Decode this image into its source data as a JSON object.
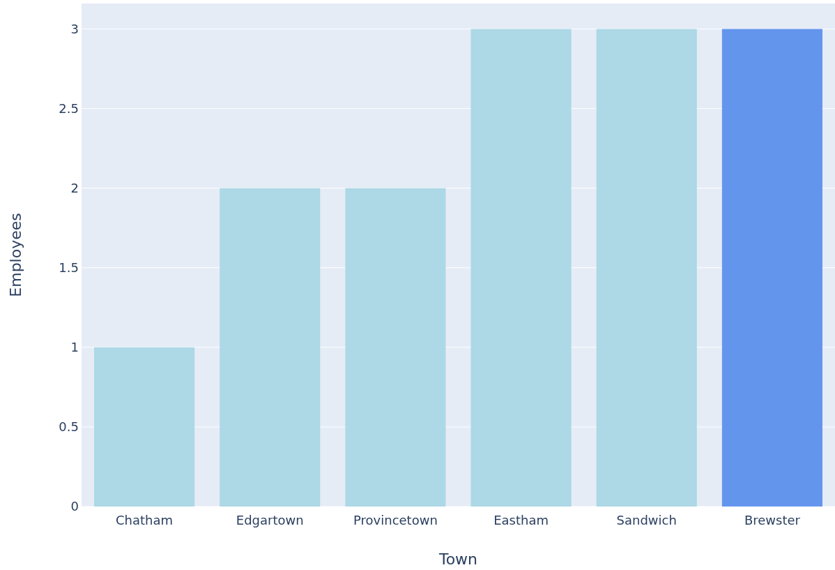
{
  "chart_data": {
    "type": "bar",
    "xlabel": "Town",
    "ylabel": "Employees",
    "categories": [
      "Chatham",
      "Edgartown",
      "Provincetown",
      "Eastham",
      "Sandwich",
      "Brewster"
    ],
    "values": [
      1,
      2,
      2,
      3,
      3,
      3
    ],
    "colors": [
      "#add8e6",
      "#add8e6",
      "#add8e6",
      "#add8e6",
      "#add8e6",
      "#6495ed"
    ],
    "ylim": [
      0,
      3.16
    ],
    "yticks": [
      0,
      0.5,
      1,
      1.5,
      2,
      2.5,
      3
    ],
    "grid": "y"
  }
}
